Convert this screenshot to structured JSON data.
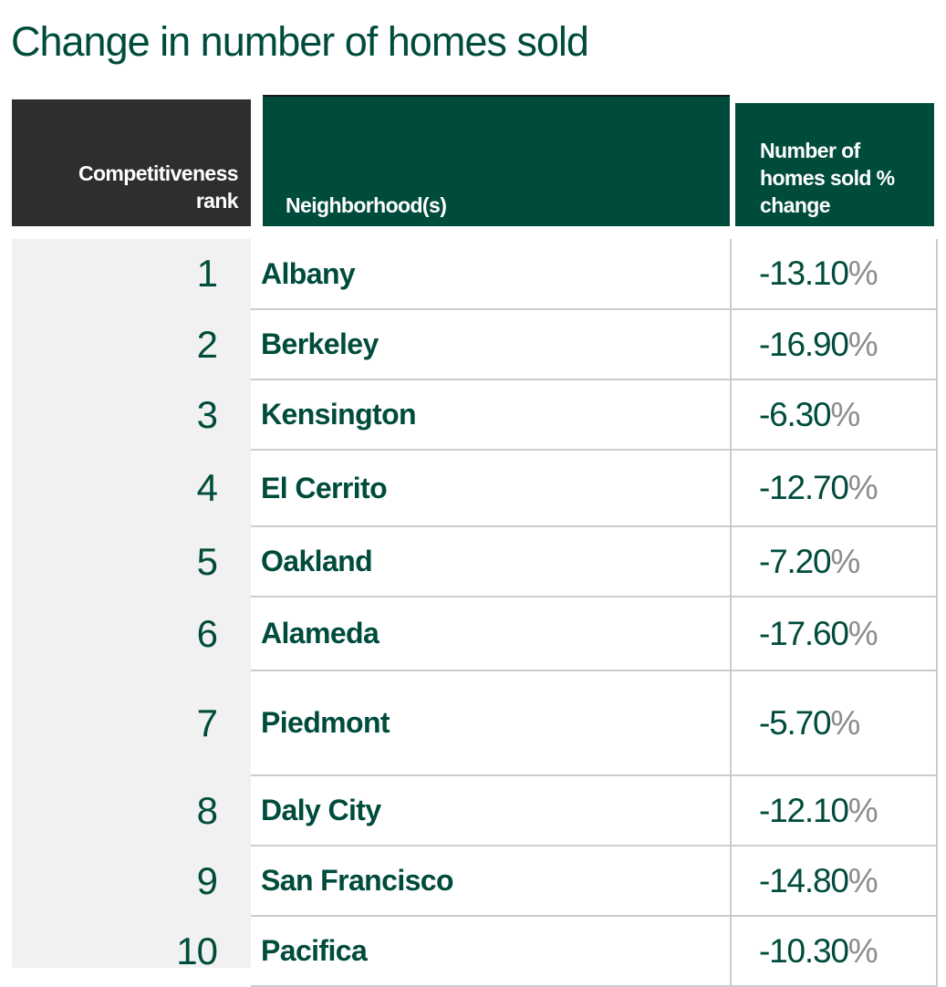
{
  "title": "Change in number of homes sold",
  "colors": {
    "primary": "#004c3c",
    "dark_header": "#2e2e2e",
    "rank_bg": "#f1f1f1",
    "percent_sign": "#8c8c8c",
    "divider": "#cccccc"
  },
  "headers": {
    "rank": [
      "Competitiveness",
      "rank"
    ],
    "neighborhood": "Neighborhood(s)",
    "change": [
      "Number of",
      "homes sold %",
      "change"
    ]
  },
  "chart_data": {
    "type": "table",
    "title": "Change in number of homes sold",
    "columns": [
      "Competitiveness rank",
      "Neighborhood(s)",
      "Number of homes sold % change"
    ],
    "rows": [
      {
        "rank": "1",
        "neighborhood": "Albany",
        "change": "-13.10",
        "unit": "%"
      },
      {
        "rank": "2",
        "neighborhood": "Berkeley",
        "change": "-16.90",
        "unit": "%"
      },
      {
        "rank": "3",
        "neighborhood": "Kensington",
        "change": "-6.30",
        "unit": "%"
      },
      {
        "rank": "4",
        "neighborhood": "El Cerrito",
        "change": "-12.70",
        "unit": "%"
      },
      {
        "rank": "5",
        "neighborhood": "Oakland",
        "change": "-7.20",
        "unit": "%"
      },
      {
        "rank": "6",
        "neighborhood": "Alameda",
        "change": "-17.60",
        "unit": "%"
      },
      {
        "rank": "7",
        "neighborhood": "Piedmont",
        "change": "-5.70",
        "unit": "%"
      },
      {
        "rank": "8",
        "neighborhood": "Daly City",
        "change": "-12.10",
        "unit": "%"
      },
      {
        "rank": "9",
        "neighborhood": "San Francisco",
        "change": "-14.80",
        "unit": "%"
      },
      {
        "rank": "10",
        "neighborhood": "Pacifica",
        "change": "-10.30",
        "unit": "%"
      }
    ]
  }
}
